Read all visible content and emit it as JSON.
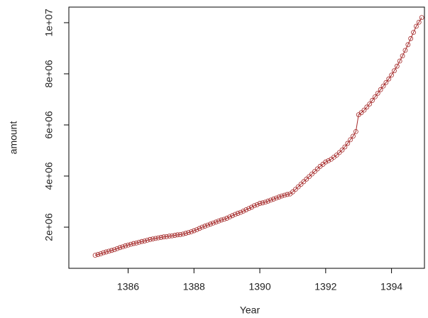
{
  "chart_data": {
    "type": "line",
    "x_label": "Year",
    "y_label": "amount",
    "x": [
      1385,
      1385.083,
      1385.167,
      1385.25,
      1385.333,
      1385.417,
      1385.5,
      1385.583,
      1385.667,
      1385.75,
      1385.833,
      1385.917,
      1386,
      1386.083,
      1386.167,
      1386.25,
      1386.333,
      1386.417,
      1386.5,
      1386.583,
      1386.667,
      1386.75,
      1386.833,
      1386.917,
      1387,
      1387.083,
      1387.167,
      1387.25,
      1387.333,
      1387.417,
      1387.5,
      1387.583,
      1387.667,
      1387.75,
      1387.833,
      1387.917,
      1388,
      1388.083,
      1388.167,
      1388.25,
      1388.333,
      1388.417,
      1388.5,
      1388.583,
      1388.667,
      1388.75,
      1388.833,
      1388.917,
      1389,
      1389.083,
      1389.167,
      1389.25,
      1389.333,
      1389.417,
      1389.5,
      1389.583,
      1389.667,
      1389.75,
      1389.833,
      1389.917,
      1390,
      1390.083,
      1390.167,
      1390.25,
      1390.333,
      1390.417,
      1390.5,
      1390.583,
      1390.667,
      1390.75,
      1390.833,
      1390.917,
      1391,
      1391.083,
      1391.167,
      1391.25,
      1391.333,
      1391.417,
      1391.5,
      1391.583,
      1391.667,
      1391.75,
      1391.833,
      1391.917,
      1392,
      1392.083,
      1392.167,
      1392.25,
      1392.333,
      1392.417,
      1392.5,
      1392.583,
      1392.667,
      1392.75,
      1392.833,
      1392.917,
      1393,
      1393.083,
      1393.167,
      1393.25,
      1393.333,
      1393.417,
      1393.5,
      1393.583,
      1393.667,
      1393.75,
      1393.833,
      1393.917,
      1394,
      1394.083,
      1394.167,
      1394.25,
      1394.333,
      1394.417,
      1394.5,
      1394.583,
      1394.667,
      1394.75,
      1394.833,
      1394.917
    ],
    "series": [
      {
        "color": "#a52a2a",
        "values": [
          900000,
          930000,
          960000,
          1000000,
          1030000,
          1060000,
          1090000,
          1120000,
          1160000,
          1200000,
          1230000,
          1270000,
          1300000,
          1330000,
          1360000,
          1380000,
          1410000,
          1440000,
          1460000,
          1490000,
          1520000,
          1540000,
          1560000,
          1580000,
          1600000,
          1620000,
          1630000,
          1650000,
          1660000,
          1680000,
          1700000,
          1710000,
          1730000,
          1760000,
          1790000,
          1820000,
          1860000,
          1900000,
          1950000,
          2000000,
          2040000,
          2080000,
          2120000,
          2160000,
          2200000,
          2240000,
          2280000,
          2310000,
          2350000,
          2400000,
          2450000,
          2500000,
          2540000,
          2580000,
          2630000,
          2680000,
          2730000,
          2780000,
          2840000,
          2880000,
          2930000,
          2950000,
          2980000,
          3020000,
          3060000,
          3100000,
          3140000,
          3180000,
          3220000,
          3250000,
          3280000,
          3300000,
          3380000,
          3480000,
          3580000,
          3680000,
          3780000,
          3880000,
          3980000,
          4080000,
          4180000,
          4280000,
          4380000,
          4460000,
          4550000,
          4600000,
          4660000,
          4740000,
          4820000,
          4920000,
          5020000,
          5140000,
          5280000,
          5420000,
          5560000,
          5740000,
          6400000,
          6480000,
          6580000,
          6700000,
          6820000,
          6960000,
          7100000,
          7240000,
          7380000,
          7520000,
          7660000,
          7800000,
          7950000,
          8120000,
          8300000,
          8500000,
          8700000,
          8920000,
          9140000,
          9380000,
          9620000,
          9860000,
          10020000,
          10200000
        ]
      }
    ],
    "xlim": [
      1384.2,
      1395.0
    ],
    "xticks": [
      1386,
      1388,
      1390,
      1392,
      1394
    ],
    "ylim": [
      390000,
      10610000
    ],
    "yticks": [
      {
        "value": 2000000,
        "label": "2e+06"
      },
      {
        "value": 4000000,
        "label": "4e+06"
      },
      {
        "value": 6000000,
        "label": "6e+06"
      },
      {
        "value": 8000000,
        "label": "8e+06"
      },
      {
        "value": 10000000,
        "label": "1e+07"
      }
    ]
  }
}
